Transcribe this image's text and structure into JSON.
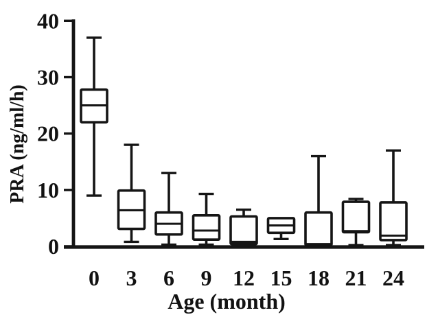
{
  "figure": {
    "background_color": "#ffffff",
    "ink_color": "#151515"
  },
  "chart_data": {
    "type": "boxplot",
    "title": "",
    "xlabel": "Age (month)",
    "ylabel": "PRA (ng/ml/h)",
    "grid": false,
    "legend": "none",
    "ylim": [
      0,
      40
    ],
    "y_ticks": [
      "0",
      "10",
      "20",
      "30",
      "40"
    ],
    "y_tick_values": [
      0,
      10,
      20,
      30,
      40
    ],
    "categories": [
      "0",
      "3",
      "6",
      "9",
      "12",
      "15",
      "18",
      "21",
      "24"
    ],
    "series": [
      {
        "label": "0",
        "min": 9.0,
        "q1": 22.0,
        "median": 25.0,
        "q3": 27.8,
        "max": 37.0
      },
      {
        "label": "3",
        "min": 0.8,
        "q1": 3.1,
        "median": 6.4,
        "q3": 9.9,
        "max": 18.0
      },
      {
        "label": "6",
        "min": 0.3,
        "q1": 2.1,
        "median": 4.0,
        "q3": 6.0,
        "max": 13.0
      },
      {
        "label": "9",
        "min": 0.3,
        "q1": 1.2,
        "median": 2.8,
        "q3": 5.5,
        "max": 9.3
      },
      {
        "label": "12",
        "min": 0.1,
        "q1": 0.4,
        "median": 0.8,
        "q3": 5.3,
        "max": 6.5
      },
      {
        "label": "15",
        "min": 1.3,
        "q1": 2.4,
        "median": 3.7,
        "q3": 5.0,
        "max": 5.0
      },
      {
        "label": "18",
        "min": 0.1,
        "q1": 0.2,
        "median": 0.4,
        "q3": 6.0,
        "max": 16.0
      },
      {
        "label": "21",
        "min": 0.2,
        "q1": 2.5,
        "median": 2.7,
        "q3": 7.9,
        "max": 8.4
      },
      {
        "label": "24",
        "min": 0.2,
        "q1": 1.1,
        "median": 1.9,
        "q3": 7.8,
        "max": 17.0
      }
    ]
  }
}
